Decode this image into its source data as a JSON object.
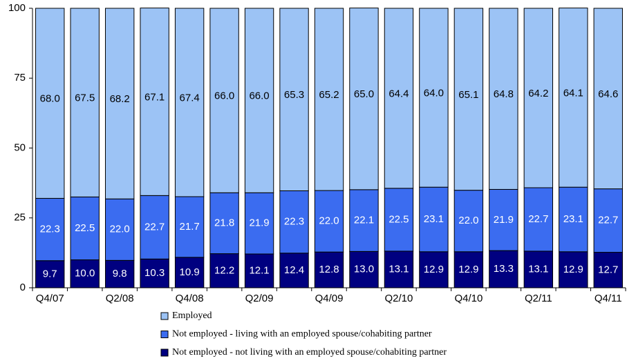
{
  "chart_data": {
    "type": "stacked-bar",
    "categories": [
      "Q4/07",
      null,
      "Q2/08",
      null,
      "Q4/08",
      null,
      "Q2/09",
      null,
      "Q4/09",
      null,
      "Q2/10",
      null,
      "Q4/10",
      null,
      "Q2/11",
      null,
      "Q4/11"
    ],
    "series": [
      {
        "name": "Employed",
        "color": "#9cc3f5",
        "label_color": "#000000",
        "values": [
          68.0,
          67.5,
          68.2,
          67.1,
          67.4,
          66.0,
          66.0,
          65.3,
          65.2,
          65.0,
          64.4,
          64.0,
          65.1,
          64.8,
          64.2,
          64.1,
          64.6
        ],
        "value_labels": [
          "68.0",
          "67.5",
          "68.2",
          "67.1",
          "67.4",
          "66.0",
          "66.0",
          "65.3",
          "65.2",
          "65.0",
          "64.4",
          "64.0",
          "65.1",
          "64.8",
          "64.2",
          "64.1",
          "64.6"
        ]
      },
      {
        "name": "Not employed - living with an employed spouse/cohabiting partner",
        "color": "#3b6cf0",
        "label_color": "#ffffff",
        "values": [
          22.3,
          22.5,
          22.0,
          22.7,
          21.7,
          21.8,
          21.9,
          22.3,
          22.0,
          22.1,
          22.5,
          23.1,
          22.0,
          21.9,
          22.7,
          23.1,
          22.7
        ],
        "value_labels": [
          "22.3",
          "22.5",
          "22.0",
          "22.7",
          "21.7",
          "21.8",
          "21.9",
          "22.3",
          "22.0",
          "22.1",
          "22.5",
          "23.1",
          "22.0",
          "21.9",
          "22.7",
          "23.1",
          "22.7"
        ]
      },
      {
        "name": "Not employed - not living with an employed spouse/cohabiting partner",
        "color": "#000080",
        "label_color": "#ffffff",
        "values": [
          9.7,
          10.0,
          9.8,
          10.3,
          10.9,
          12.2,
          12.1,
          12.4,
          12.8,
          13.0,
          13.1,
          12.9,
          12.9,
          13.3,
          13.1,
          12.9,
          12.7
        ],
        "value_labels": [
          "9.7",
          "10.0",
          "9.8",
          "10.3",
          "10.9",
          "12.2",
          "12.1",
          "12.4",
          "12.8",
          "13.0",
          "13.1",
          "12.9",
          "12.9",
          "13.3",
          "13.1",
          "12.9",
          "12.7"
        ]
      }
    ],
    "ylim": [
      0,
      100
    ],
    "yticks": [
      0,
      25,
      50,
      75,
      100
    ],
    "grid": false
  }
}
